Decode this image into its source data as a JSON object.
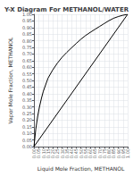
{
  "chart_data": {
    "type": "line",
    "title": "Y-X Diagram For METHANOL/WATER",
    "xlabel": "Liquid Mole Fraction, METHANOL",
    "ylabel": "Vapor Mole Fraction, METHANOL",
    "xlim": [
      0.0,
      1.0
    ],
    "ylim": [
      0.0,
      1.0
    ],
    "xticks": [
      {
        "value": 0.0,
        "label": "0.00"
      },
      {
        "value": 0.05,
        "label": "0.05"
      },
      {
        "value": 0.1,
        "label": "0.10"
      },
      {
        "value": 0.15,
        "label": "0.15"
      },
      {
        "value": 0.2,
        "label": "0.20"
      },
      {
        "value": 0.25,
        "label": "0.25"
      },
      {
        "value": 0.3,
        "label": "0.30"
      },
      {
        "value": 0.35,
        "label": "0.35"
      },
      {
        "value": 0.4,
        "label": "0.40"
      },
      {
        "value": 0.45,
        "label": "0.45"
      },
      {
        "value": 0.5,
        "label": "0.50"
      },
      {
        "value": 0.55,
        "label": "0.55"
      },
      {
        "value": 0.6,
        "label": "0.60"
      },
      {
        "value": 0.65,
        "label": "0.65"
      },
      {
        "value": 0.7,
        "label": "0.70"
      },
      {
        "value": 0.75,
        "label": "0.75"
      },
      {
        "value": 0.8,
        "label": "0.80"
      },
      {
        "value": 0.85,
        "label": "0.85"
      },
      {
        "value": 0.9,
        "label": "0.90"
      },
      {
        "value": 0.95,
        "label": "0.95"
      },
      {
        "value": 1.0,
        "label": "1.00"
      }
    ],
    "yticks": [
      {
        "value": 0.0,
        "label": "0.00"
      },
      {
        "value": 0.05,
        "label": "0.05"
      },
      {
        "value": 0.1,
        "label": "0.10"
      },
      {
        "value": 0.15,
        "label": "0.15"
      },
      {
        "value": 0.2,
        "label": "0.20"
      },
      {
        "value": 0.25,
        "label": "0.25"
      },
      {
        "value": 0.3,
        "label": "0.30"
      },
      {
        "value": 0.35,
        "label": "0.35"
      },
      {
        "value": 0.4,
        "label": "0.40"
      },
      {
        "value": 0.45,
        "label": "0.45"
      },
      {
        "value": 0.5,
        "label": "0.50"
      },
      {
        "value": 0.55,
        "label": "0.55"
      },
      {
        "value": 0.6,
        "label": "0.60"
      },
      {
        "value": 0.65,
        "label": "0.65"
      },
      {
        "value": 0.7,
        "label": "0.70"
      },
      {
        "value": 0.75,
        "label": "0.75"
      },
      {
        "value": 0.8,
        "label": "0.80"
      },
      {
        "value": 0.85,
        "label": "0.85"
      },
      {
        "value": 0.9,
        "label": "0.90"
      },
      {
        "value": 0.95,
        "label": "0.95"
      },
      {
        "value": 1.0,
        "label": "1.00"
      }
    ],
    "grid": true,
    "series": [
      {
        "color": "#000000",
        "x": [
          0.0,
          1.0
        ],
        "values": [
          0.0,
          1.0
        ]
      },
      {
        "color": "#000000",
        "x": [
          0.0,
          0.02,
          0.04,
          0.06,
          0.08,
          0.1,
          0.15,
          0.2,
          0.25,
          0.3,
          0.35,
          0.4,
          0.45,
          0.5,
          0.55,
          0.6,
          0.65,
          0.7,
          0.75,
          0.8,
          0.85,
          0.9,
          0.95,
          1.0
        ],
        "values": [
          0.0,
          0.134,
          0.23,
          0.304,
          0.365,
          0.418,
          0.517,
          0.579,
          0.631,
          0.675,
          0.712,
          0.746,
          0.779,
          0.811,
          0.839,
          0.863,
          0.886,
          0.908,
          0.93,
          0.952,
          0.97,
          0.983,
          0.993,
          1.0
        ]
      }
    ]
  }
}
